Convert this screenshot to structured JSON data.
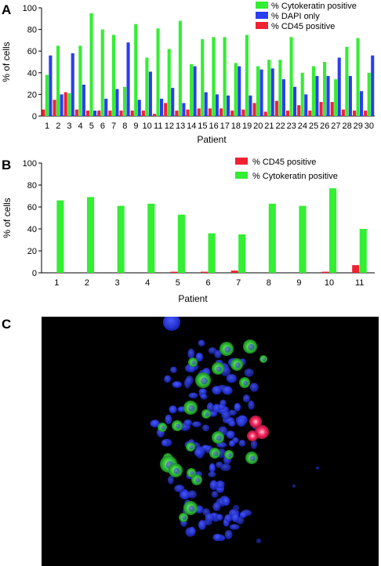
{
  "panels": {
    "A": "A",
    "B": "B",
    "C": "C"
  },
  "colors": {
    "cytokeratin": "#33ee33",
    "dapi": "#2a3ff0",
    "cd45": "#ee2233"
  },
  "chart_data": [
    {
      "panel": "A",
      "type": "bar",
      "xlabel": "Patient",
      "ylabel": "% of cells",
      "ylim": [
        0,
        100
      ],
      "yticks": [
        0,
        20,
        40,
        60,
        80,
        100
      ],
      "grid": false,
      "legend_position": "top-right",
      "categories": [
        "1",
        "2",
        "3",
        "4",
        "5",
        "6",
        "7",
        "8",
        "9",
        "10",
        "11",
        "12",
        "13",
        "14",
        "15",
        "16",
        "17",
        "18",
        "19",
        "20",
        "21",
        "22",
        "23",
        "24",
        "25",
        "26",
        "27",
        "28",
        "29",
        "30"
      ],
      "series": [
        {
          "name": "% CD45 positive",
          "color": "#ee2233",
          "values": [
            6,
            15,
            22,
            6,
            5,
            5,
            5,
            5,
            5,
            5,
            2,
            12,
            5,
            6,
            7,
            7,
            7,
            5,
            6,
            12,
            4,
            14,
            5,
            10,
            5,
            13,
            13,
            6,
            5,
            5
          ]
        },
        {
          "name": "% Cytokeratin positive",
          "color": "#33ee33",
          "values": [
            38,
            65,
            21,
            65,
            95,
            80,
            75,
            27,
            85,
            54,
            81,
            62,
            88,
            48,
            71,
            73,
            73,
            49,
            75,
            46,
            52,
            52,
            73,
            40,
            46,
            50,
            34,
            64,
            72,
            40
          ]
        },
        {
          "name": "% DAPI only",
          "color": "#2a3ff0",
          "values": [
            56,
            20,
            58,
            29,
            5,
            16,
            25,
            68,
            15,
            41,
            16,
            26,
            12,
            46,
            22,
            20,
            19,
            46,
            19,
            43,
            44,
            34,
            27,
            20,
            37,
            37,
            54,
            37,
            23,
            56
          ]
        }
      ],
      "legend": [
        "% Cytokeratin positive",
        "% DAPI only",
        "% CD45 positive"
      ]
    },
    {
      "panel": "B",
      "type": "bar",
      "xlabel": "Patient",
      "ylabel": "% of cells",
      "ylim": [
        0,
        100
      ],
      "yticks": [
        0,
        20,
        40,
        60,
        80,
        100
      ],
      "grid": false,
      "legend_position": "top-right",
      "categories": [
        "1",
        "2",
        "3",
        "4",
        "5",
        "6",
        "7",
        "8",
        "9",
        "10",
        "11"
      ],
      "series": [
        {
          "name": "% CD45 positive",
          "color": "#ee2233",
          "values": [
            0,
            0,
            0,
            0,
            1,
            1,
            2,
            0,
            0,
            1,
            7
          ]
        },
        {
          "name": "% Cytokeratin positive",
          "color": "#33ee33",
          "values": [
            66,
            69,
            61,
            63,
            53,
            36,
            35,
            63,
            61,
            77,
            40
          ]
        }
      ],
      "legend": [
        "% CD45 positive",
        "% Cytokeratin positive"
      ]
    }
  ]
}
